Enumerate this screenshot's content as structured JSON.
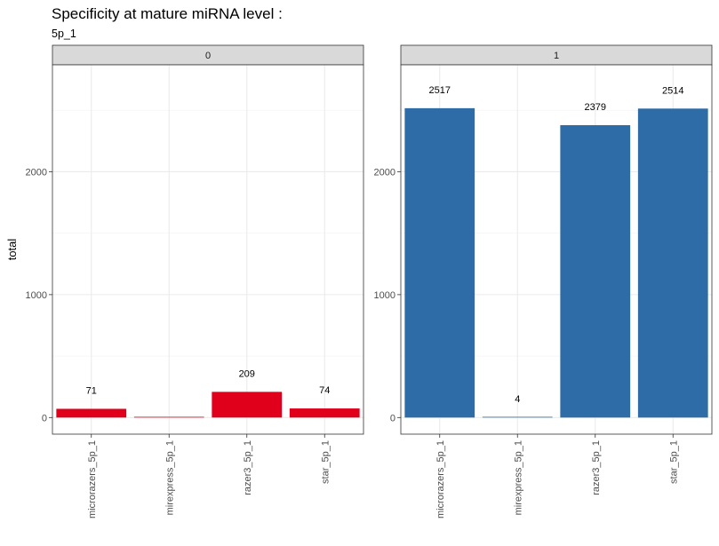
{
  "chart_data": {
    "type": "bar",
    "title": "Specificity at mature miRNA level :",
    "subtitle": "5p_1",
    "ylabel": "total",
    "xlabel": "",
    "ylim": [
      -135,
      2870
    ],
    "yticks": [
      0,
      1000,
      2000
    ],
    "grid": true,
    "categories": [
      "microrazers_5p_1",
      "mirexpress_5p_1",
      "razer3_5p_1",
      "star_5p_1"
    ],
    "facets": [
      {
        "label": "0",
        "color": "#e0001b",
        "values": [
          71,
          0,
          209,
          74
        ],
        "data_labels": [
          "71",
          "",
          "209",
          "74"
        ]
      },
      {
        "label": "1",
        "color": "#2e6ca8",
        "values": [
          2517,
          4,
          2379,
          2514
        ],
        "data_labels": [
          "2517",
          "4",
          "2379",
          "2514"
        ]
      }
    ]
  }
}
